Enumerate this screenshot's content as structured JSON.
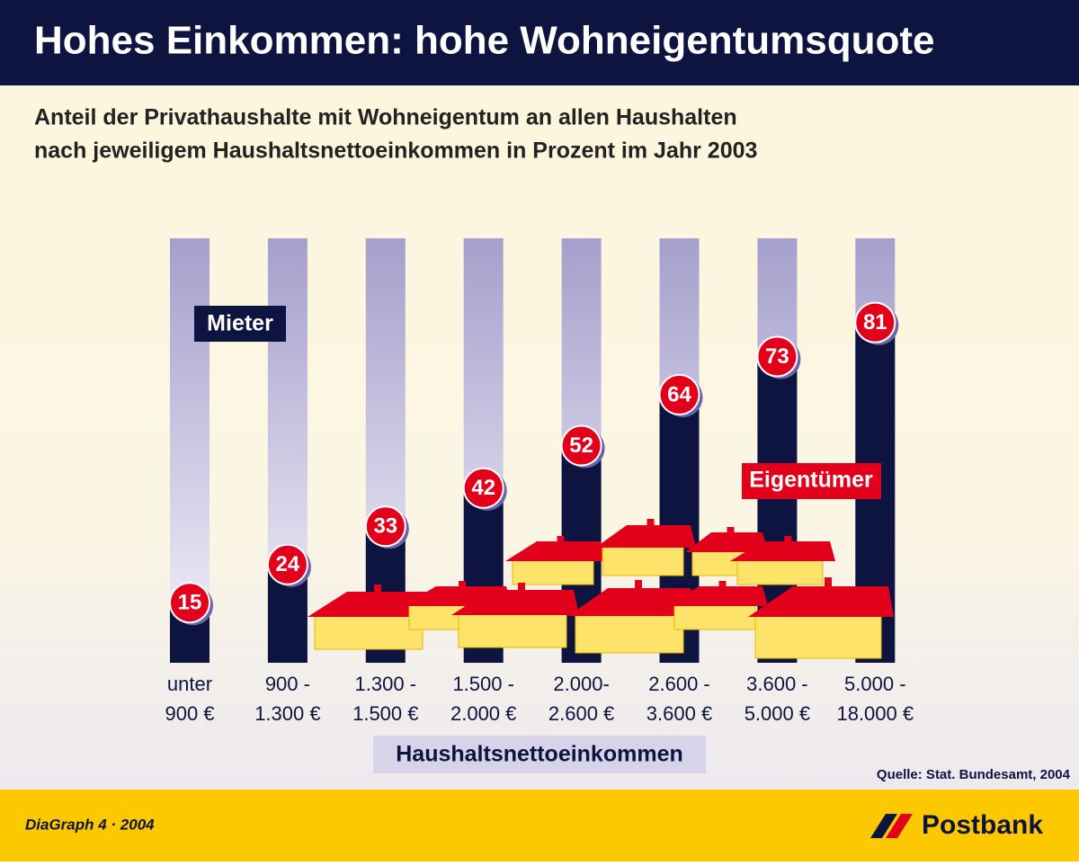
{
  "chart_data": {
    "type": "bar",
    "title": "Hohes Einkommen: hohe Wohneigentumsquote",
    "subtitle": [
      "Anteil der Privathaushalte mit Wohneigentum an allen Haushalten",
      "nach jeweiligem Haushaltsnettoeinkommen in Prozent im Jahr 2003"
    ],
    "x_label": "Haushaltsnettoeinkommen",
    "categories": [
      [
        "unter",
        "900 €"
      ],
      [
        "900 -",
        "1.300 €"
      ],
      [
        "1.300 -",
        "1.500 €"
      ],
      [
        "1.500 -",
        "2.000 €"
      ],
      [
        "2.000-",
        "2.600 €"
      ],
      [
        "2.600 -",
        "3.600 €"
      ],
      [
        "3.600 -",
        "5.000 €"
      ],
      [
        "5.000 -",
        "18.000 €"
      ]
    ],
    "series": [
      {
        "name": "Eigentümer",
        "color": "#0d1440",
        "values": [
          15,
          24,
          33,
          42,
          52,
          64,
          73,
          81
        ]
      }
    ],
    "background_label": "Mieter",
    "ylim": [
      0,
      100
    ],
    "source": "Quelle: Stat. Bundesamt, 2004",
    "footer": "DiaGraph 4 · 2004",
    "brand": "Postbank"
  }
}
